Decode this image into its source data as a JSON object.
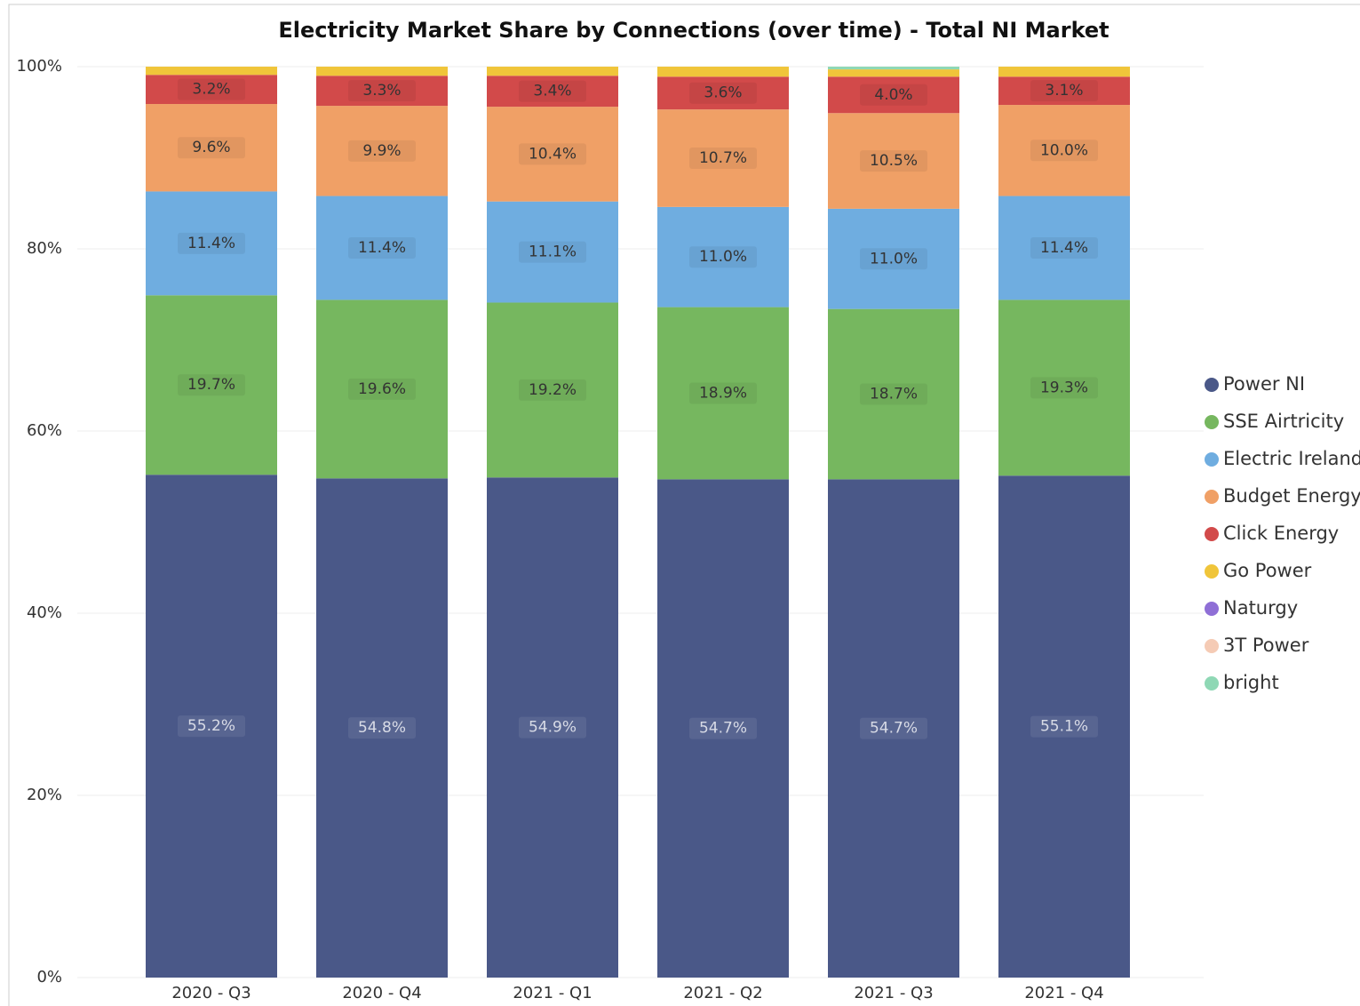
{
  "chart_data": {
    "type": "stacked_bar",
    "title": "Electricity Market Share by Connections (over time) - Total NI Market",
    "categories": [
      "2020 - Q3",
      "2020 - Q4",
      "2021 - Q1",
      "2021 - Q2",
      "2021 - Q3",
      "2021 - Q4"
    ],
    "series": [
      {
        "name": "Power NI",
        "color": "#4a5888",
        "values": [
          55.2,
          54.8,
          54.9,
          54.7,
          54.7,
          55.1
        ],
        "value_labels": [
          "55.2%",
          "54.8%",
          "54.9%",
          "54.7%",
          "54.7%",
          "55.1%"
        ]
      },
      {
        "name": "SSE Airtricity",
        "color": "#76b75f",
        "values": [
          19.7,
          19.6,
          19.2,
          18.9,
          18.7,
          19.3
        ],
        "value_labels": [
          "19.7%",
          "19.6%",
          "19.2%",
          "18.9%",
          "18.7%",
          "19.3%"
        ]
      },
      {
        "name": "Electric Ireland",
        "color": "#6fade0",
        "values": [
          11.4,
          11.4,
          11.1,
          11.0,
          11.0,
          11.4
        ],
        "value_labels": [
          "11.4%",
          "11.4%",
          "11.1%",
          "11.0%",
          "11.0%",
          "11.4%"
        ]
      },
      {
        "name": "Budget Energy",
        "color": "#f0a066",
        "values": [
          9.6,
          9.9,
          10.4,
          10.7,
          10.5,
          10.0
        ],
        "value_labels": [
          "9.6%",
          "9.9%",
          "10.4%",
          "10.7%",
          "10.5%",
          "10.0%"
        ]
      },
      {
        "name": "Click Energy",
        "color": "#d24a4a",
        "values": [
          3.2,
          3.3,
          3.4,
          3.6,
          4.0,
          3.1
        ],
        "value_labels": [
          "3.2%",
          "3.3%",
          "3.4%",
          "3.6%",
          "4.0%",
          "3.1%"
        ]
      },
      {
        "name": "Go Power",
        "color": "#f0c53a",
        "values": [
          0.9,
          1.0,
          1.0,
          1.1,
          0.8,
          1.1
        ]
      },
      {
        "name": "Naturgy",
        "color": "#8f6fd6",
        "values": [
          0,
          0,
          0,
          0,
          0,
          0
        ]
      },
      {
        "name": "3T Power",
        "color": "#f5cbb5",
        "values": [
          0,
          0,
          0,
          0,
          0,
          0
        ]
      },
      {
        "name": "bright",
        "color": "#8fd8b5",
        "values": [
          0,
          0,
          0,
          0,
          0.3,
          0
        ]
      }
    ],
    "ylim": [
      0,
      100
    ],
    "yticks": [
      {
        "value": 0,
        "label": "0%"
      },
      {
        "value": 20,
        "label": "20%"
      },
      {
        "value": 40,
        "label": "40%"
      },
      {
        "value": 60,
        "label": "60%"
      },
      {
        "value": 80,
        "label": "80%"
      },
      {
        "value": 100,
        "label": "100%"
      }
    ],
    "grid": true,
    "legend": "right"
  }
}
